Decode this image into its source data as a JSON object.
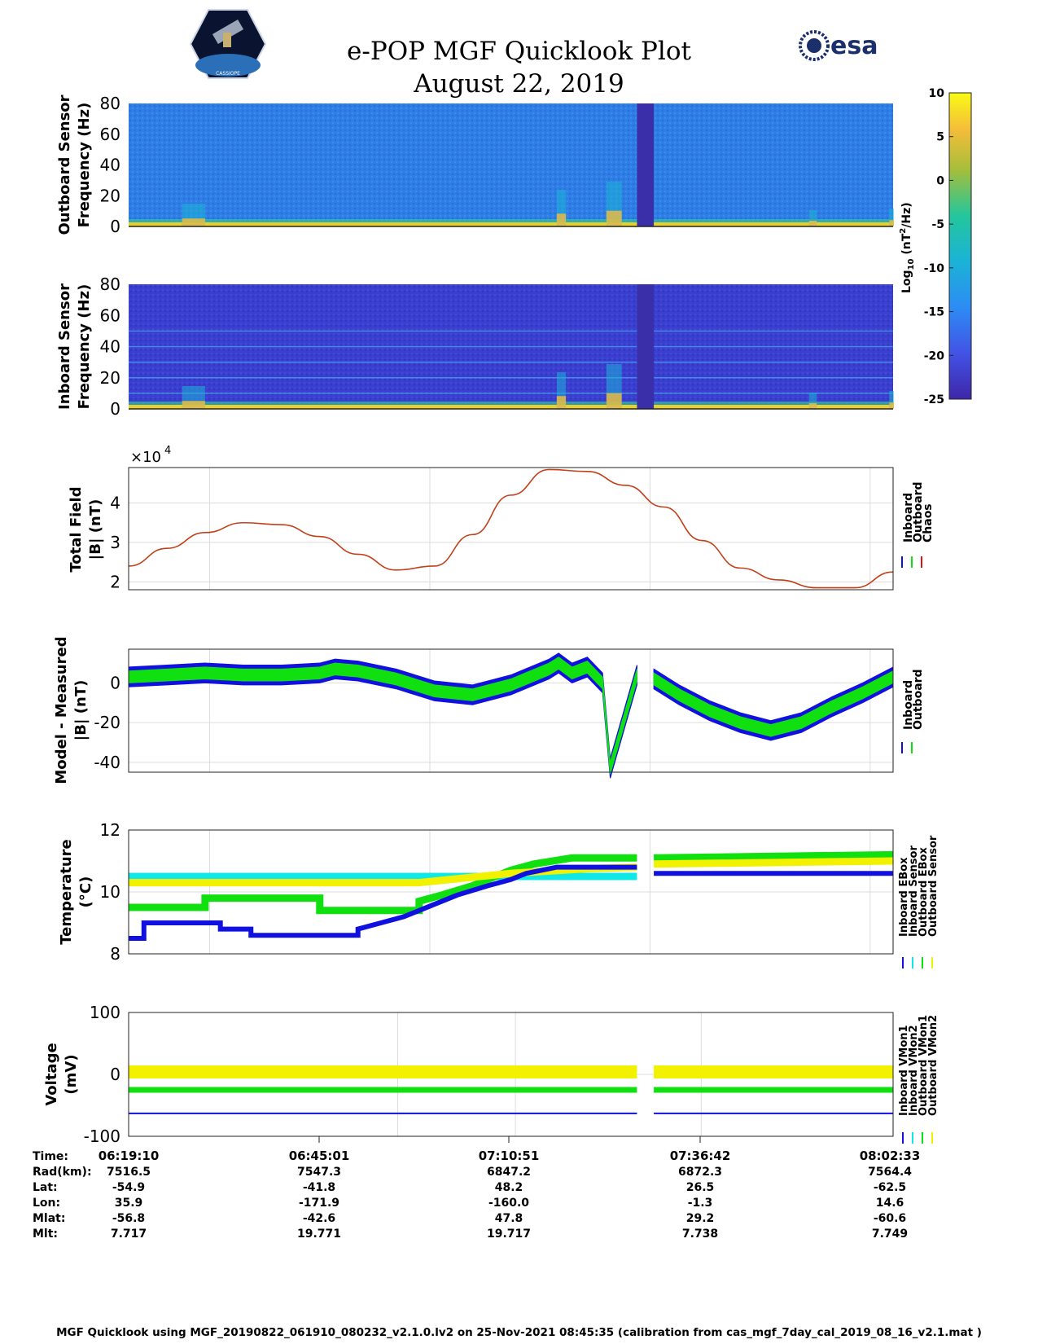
{
  "header": {
    "title": "e-POP MGF Quicklook Plot",
    "date": "August 22, 2019",
    "logo_left": "CASSIOPE",
    "logo_right": "esa"
  },
  "colors": {
    "inboard": "#1010e0",
    "outboard": "#10e010",
    "chaos": "#e01010",
    "model": "#c0401a",
    "cyan": "#10e8e8",
    "yellow": "#f2f200",
    "spec_bg_out": "#2f7ee6",
    "spec_bg_in": "#3a3ccc",
    "spec_gap": "#3a2fa8"
  },
  "chart_data": [
    {
      "type": "heatmap",
      "title": "Outboard Sensor Frequency",
      "ylabel": [
        "Outboard Sensor",
        "Frequency (Hz)"
      ],
      "ylim": [
        0,
        80
      ],
      "yticks": [
        "0",
        "20",
        "40",
        "60",
        "80"
      ],
      "x": [
        0,
        1
      ],
      "data_gap_fraction": [
        0.665,
        0.687
      ]
    },
    {
      "type": "heatmap",
      "title": "Inboard Sensor Frequency",
      "ylabel": [
        "Inboard Sensor",
        "Frequency (Hz)"
      ],
      "ylim": [
        0,
        80
      ],
      "yticks": [
        "0",
        "20",
        "40",
        "60",
        "80"
      ],
      "harmonic_lines_hz": [
        10,
        20,
        30,
        40,
        50
      ],
      "data_gap_fraction": [
        0.665,
        0.687
      ]
    },
    {
      "type": "colorbar",
      "label": "Log10 (nT^2/Hz)",
      "label_parts": [
        "Log",
        "10",
        " (nT",
        "2",
        "/Hz)"
      ],
      "range": [
        -25,
        10
      ],
      "ticks": [
        "10",
        "5",
        "0",
        "-5",
        "-10",
        "-15",
        "-20",
        "-25"
      ]
    },
    {
      "type": "line",
      "title": "Total Field",
      "ylabel": [
        "Total Field",
        "|B| (nT)"
      ],
      "exponent": "4",
      "multiplier": "×10",
      "ylim": [
        1.8,
        4.9
      ],
      "yticks": [
        "2",
        "3",
        "4"
      ],
      "legend": [
        "Inboard",
        "Outboard",
        "Chaos"
      ],
      "x": [
        0,
        0.05,
        0.1,
        0.15,
        0.2,
        0.25,
        0.3,
        0.35,
        0.4,
        0.45,
        0.5,
        0.55,
        0.6,
        0.65,
        0.7,
        0.75,
        0.8,
        0.85,
        0.9,
        0.95,
        1.0
      ],
      "y": [
        2.4,
        2.85,
        3.25,
        3.5,
        3.45,
        3.15,
        2.7,
        2.3,
        2.4,
        3.2,
        4.2,
        4.85,
        4.8,
        4.45,
        3.9,
        3.05,
        2.35,
        2.05,
        1.85,
        1.85,
        2.25
      ]
    },
    {
      "type": "line",
      "title": "Model - Measured",
      "ylabel": [
        "Model - Measured",
        "|B| (nT)"
      ],
      "ylim": [
        -45,
        17
      ],
      "yticks": [
        "0",
        "-20",
        "-40"
      ],
      "legend": [
        "Inboard",
        "Outboard"
      ],
      "gap": [
        0.665,
        0.687
      ],
      "x": [
        0,
        0.05,
        0.1,
        0.15,
        0.2,
        0.25,
        0.27,
        0.3,
        0.35,
        0.4,
        0.45,
        0.5,
        0.55,
        0.5625,
        0.58,
        0.6,
        0.62,
        0.63,
        0.665,
        0.687,
        0.72,
        0.76,
        0.8,
        0.84,
        0.88,
        0.92,
        0.96,
        1.0
      ],
      "y": [
        3,
        4,
        5,
        4,
        4,
        5,
        7,
        6,
        2,
        -4,
        -6,
        -1,
        7,
        10,
        5,
        8,
        0,
        -43,
        4,
        2,
        -6,
        -14,
        -20,
        -24,
        -20,
        -12,
        -5,
        3
      ]
    },
    {
      "type": "line",
      "title": "Temperature",
      "ylabel": [
        "Temperature",
        "(°C)"
      ],
      "ylim": [
        8,
        12
      ],
      "yticks": [
        "8",
        "10",
        "12"
      ],
      "legend": [
        "Inboard EBox",
        "Inboard Sensor",
        "Outboard EBox",
        "Outboard Sensor"
      ],
      "series": [
        {
          "name": "Inboard EBox",
          "x": [
            0,
            0.02,
            0.02,
            0.12,
            0.12,
            0.16,
            0.16,
            0.3,
            0.3,
            0.33,
            0.36,
            0.38,
            0.4,
            0.43,
            0.47,
            0.5,
            0.52,
            0.54,
            0.56,
            0.665,
            0.687,
            1.0
          ],
          "y": [
            8.5,
            8.5,
            9,
            9,
            8.8,
            8.8,
            8.6,
            8.6,
            8.8,
            9,
            9.2,
            9.4,
            9.6,
            9.9,
            10.2,
            10.4,
            10.6,
            10.7,
            10.8,
            10.8,
            10.6,
            10.6
          ]
        },
        {
          "name": "Inboard Sensor",
          "x": [
            0,
            0.38,
            0.45,
            0.55,
            0.6,
            0.665
          ],
          "y": [
            10.5,
            10.5,
            10.5,
            10.5,
            10.5,
            10.5
          ]
        },
        {
          "name": "Outboard EBox",
          "x": [
            0,
            0.1,
            0.1,
            0.25,
            0.25,
            0.38,
            0.38,
            0.41,
            0.45,
            0.48,
            0.5,
            0.53,
            0.58,
            0.665,
            0.687,
            1.0
          ],
          "y": [
            9.5,
            9.5,
            9.8,
            9.8,
            9.4,
            9.4,
            9.7,
            9.9,
            10.2,
            10.5,
            10.7,
            10.9,
            11.1,
            11.1,
            11.1,
            11.2
          ]
        },
        {
          "name": "Outboard Sensor",
          "x": [
            0,
            0.38,
            0.44,
            0.5,
            0.6,
            0.665,
            0.687,
            1.0
          ],
          "y": [
            10.3,
            10.3,
            10.45,
            10.6,
            10.75,
            10.8,
            10.9,
            11.0
          ]
        }
      ]
    },
    {
      "type": "line",
      "title": "Voltage",
      "ylabel": [
        "Voltage",
        "(mV)"
      ],
      "ylim": [
        -100,
        100
      ],
      "yticks": [
        "100",
        "0",
        "-100"
      ],
      "legend": [
        "Inboard VMon1",
        "Inboard VMon2",
        "Outboard VMon1",
        "Outboard VMon2"
      ],
      "series": [
        {
          "name": "Outboard VMon2",
          "value": 4
        },
        {
          "name": "Outboard VMon1",
          "value": -25
        },
        {
          "name": "Inboard VMon1",
          "value": -63
        }
      ],
      "gap": [
        0.665,
        0.687
      ]
    }
  ],
  "orbit_table": {
    "row_labels": [
      "Time:",
      "Rad(km):",
      "Lat:",
      "Lon:",
      "Mlat:",
      "Mlt:"
    ],
    "columns": [
      [
        "06:19:10",
        "7516.5",
        "-54.9",
        "35.9",
        "-56.8",
        "7.717"
      ],
      [
        "06:45:01",
        "7547.3",
        "-41.8",
        "-171.9",
        "-42.6",
        "19.771"
      ],
      [
        "07:10:51",
        "6847.2",
        "48.2",
        "-160.0",
        "47.8",
        "19.717"
      ],
      [
        "07:36:42",
        "6872.3",
        "26.5",
        "-1.3",
        "29.2",
        "7.738"
      ],
      [
        "08:02:33",
        "7564.4",
        "-62.5",
        "14.6",
        "-60.6",
        "7.749"
      ]
    ]
  },
  "footer": "MGF Quicklook using MGF_20190822_061910_080232_v2.1.0.lv2 on 25-Nov-2021 08:45:35 (calibration from cas_mgf_7day_cal_2019_08_16_v2.1.mat )"
}
